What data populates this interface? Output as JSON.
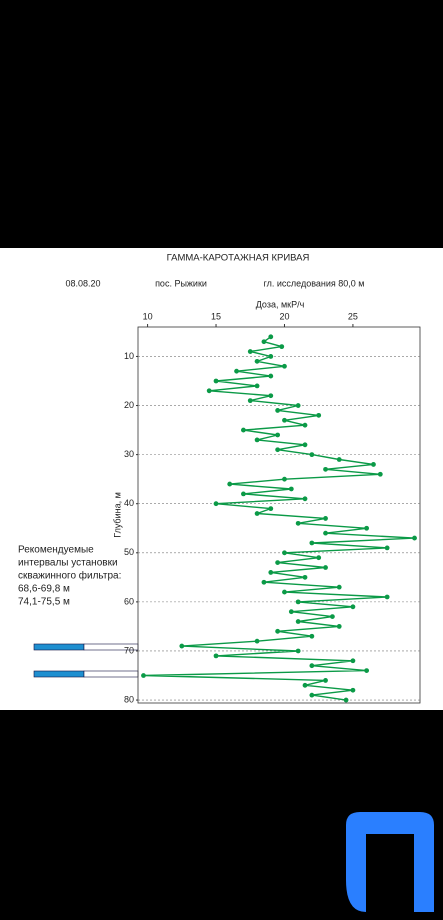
{
  "chart_data": {
    "type": "line",
    "title": "ГАММА-КАРОТАЖНАЯ КРИВАЯ",
    "subtitle": [
      "08.08.20",
      "пос. Рыжики",
      "гл. исследования 80,0 м"
    ],
    "x_label": "Доза, мкР/ч",
    "y_label": "Глубина, м",
    "annotation": [
      "Рекомендуемые",
      "интервалы установки",
      "скважинного фильтра:",
      "68,6-69,8 м",
      "74,1-75,5 м"
    ],
    "xlim": [
      9.3,
      29.9
    ],
    "xticks": [
      10,
      15,
      20,
      25
    ],
    "ylim": [
      4,
      80.6
    ],
    "yticks": [
      10,
      20,
      30,
      40,
      50,
      60,
      70,
      80
    ],
    "y_inverted": true,
    "grid": true,
    "series": [
      {
        "color": "#0b9a47",
        "depth": [
          6,
          7,
          8,
          9,
          10,
          11,
          12,
          13,
          14,
          15,
          16,
          17,
          18,
          19,
          20,
          21,
          22,
          23,
          24,
          25,
          26,
          27,
          28,
          29,
          30,
          31,
          32,
          33,
          34,
          35,
          36,
          37,
          38,
          39,
          40,
          41,
          42,
          43,
          44,
          45,
          46,
          47,
          48,
          49,
          50,
          51,
          52,
          53,
          54,
          55,
          56,
          57,
          58,
          59,
          60,
          61,
          62,
          63,
          64,
          65,
          66,
          67,
          68,
          69,
          70,
          71,
          72,
          73,
          74,
          75,
          76,
          77,
          78,
          79,
          80
        ],
        "values": [
          19,
          18.5,
          19.8,
          17.5,
          19,
          18,
          20,
          16.5,
          19,
          15,
          18,
          14.5,
          19,
          17.5,
          21,
          19.5,
          22.5,
          20,
          21.5,
          17,
          19.5,
          18,
          21.5,
          19.5,
          22,
          24,
          26.5,
          23,
          27,
          20,
          16,
          20.5,
          17,
          21.5,
          15,
          19,
          18,
          23,
          21,
          26,
          23,
          29.5,
          22,
          27.5,
          20,
          22.5,
          19.5,
          23,
          19,
          21.5,
          18.5,
          24,
          20,
          27.5,
          21,
          25,
          20.5,
          23.5,
          21,
          24,
          19.5,
          22,
          18,
          12.5,
          21,
          15,
          25,
          22,
          26,
          9.7,
          23,
          21.5,
          25,
          22,
          24.5
        ]
      }
    ]
  }
}
